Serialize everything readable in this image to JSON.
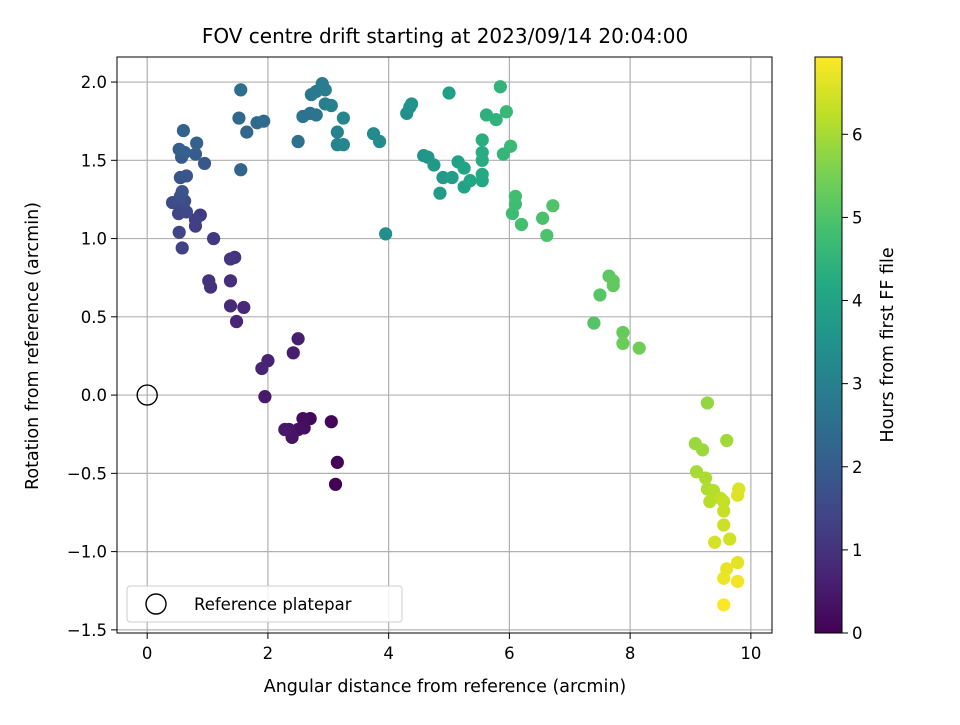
{
  "chart_data": {
    "type": "scatter",
    "title": "FOV centre drift starting at 2023/09/14 20:04:00",
    "xlabel": "Angular distance from reference (arcmin)",
    "ylabel": "Rotation from reference (arcmin)",
    "xlim": [
      -0.5,
      10.35
    ],
    "ylim": [
      -1.52,
      2.16
    ],
    "xticks": [
      0,
      2,
      4,
      6,
      8,
      10
    ],
    "yticks": [
      -1.5,
      -1.0,
      -0.5,
      0.0,
      0.5,
      1.0,
      1.5,
      2.0
    ],
    "xtick_labels": [
      "0",
      "2",
      "4",
      "6",
      "8",
      "10"
    ],
    "ytick_labels": [
      "−1.5",
      "−1.0",
      "−0.5",
      "0.0",
      "0.5",
      "1.0",
      "1.5",
      "2.0"
    ],
    "grid": true,
    "colormap": "viridis",
    "colorbar": {
      "label": "Hours from first FF file",
      "range": [
        0,
        6.93
      ],
      "ticks": [
        0,
        1,
        2,
        3,
        4,
        5,
        6
      ],
      "tick_labels": [
        "0",
        "1",
        "2",
        "3",
        "4",
        "5",
        "6"
      ]
    },
    "legend": {
      "location": "lower-left",
      "entries": [
        "Reference platepar"
      ]
    },
    "reference_point": {
      "x": 0.0,
      "y": 0.0
    },
    "series": [
      {
        "points": [
          {
            "x": 3.12,
            "y": -0.57,
            "c": 0.0
          },
          {
            "x": 3.15,
            "y": -0.43,
            "c": 0.05
          },
          {
            "x": 3.05,
            "y": -0.17,
            "c": 0.1
          },
          {
            "x": 2.7,
            "y": -0.15,
            "c": 0.15
          },
          {
            "x": 2.58,
            "y": -0.15,
            "c": 0.2
          },
          {
            "x": 2.6,
            "y": -0.21,
            "c": 0.25
          },
          {
            "x": 2.5,
            "y": -0.22,
            "c": 0.3
          },
          {
            "x": 2.4,
            "y": -0.27,
            "c": 0.35
          },
          {
            "x": 2.35,
            "y": -0.22,
            "c": 0.4
          },
          {
            "x": 2.28,
            "y": -0.22,
            "c": 0.45
          },
          {
            "x": 1.95,
            "y": -0.01,
            "c": 0.5
          },
          {
            "x": 2.42,
            "y": 0.27,
            "c": 0.55
          },
          {
            "x": 2.5,
            "y": 0.36,
            "c": 0.6
          },
          {
            "x": 2.0,
            "y": 0.22,
            "c": 0.65
          },
          {
            "x": 1.9,
            "y": 0.17,
            "c": 0.7
          },
          {
            "x": 1.48,
            "y": 0.47,
            "c": 0.75
          },
          {
            "x": 1.6,
            "y": 0.56,
            "c": 0.8
          },
          {
            "x": 1.38,
            "y": 0.57,
            "c": 0.85
          },
          {
            "x": 1.38,
            "y": 0.73,
            "c": 0.9
          },
          {
            "x": 1.05,
            "y": 0.69,
            "c": 0.95
          },
          {
            "x": 1.02,
            "y": 0.73,
            "c": 1.0
          },
          {
            "x": 1.45,
            "y": 0.88,
            "c": 1.05
          },
          {
            "x": 1.38,
            "y": 0.87,
            "c": 1.1
          },
          {
            "x": 1.1,
            "y": 1.0,
            "c": 1.15
          },
          {
            "x": 0.88,
            "y": 1.15,
            "c": 1.2
          },
          {
            "x": 0.8,
            "y": 1.08,
            "c": 1.25
          },
          {
            "x": 0.8,
            "y": 1.12,
            "c": 1.3
          },
          {
            "x": 0.58,
            "y": 0.94,
            "c": 1.35
          },
          {
            "x": 0.53,
            "y": 1.04,
            "c": 1.4
          },
          {
            "x": 0.52,
            "y": 1.16,
            "c": 1.45
          },
          {
            "x": 0.65,
            "y": 1.17,
            "c": 1.5
          },
          {
            "x": 0.6,
            "y": 1.2,
            "c": 1.55
          },
          {
            "x": 0.42,
            "y": 1.23,
            "c": 1.6
          },
          {
            "x": 0.62,
            "y": 1.24,
            "c": 1.65
          },
          {
            "x": 0.55,
            "y": 1.27,
            "c": 1.7
          },
          {
            "x": 0.58,
            "y": 1.3,
            "c": 1.75
          },
          {
            "x": 0.55,
            "y": 1.39,
            "c": 1.8
          },
          {
            "x": 0.65,
            "y": 1.4,
            "c": 1.85
          },
          {
            "x": 0.95,
            "y": 1.48,
            "c": 1.9
          },
          {
            "x": 0.57,
            "y": 1.52,
            "c": 1.95
          },
          {
            "x": 0.8,
            "y": 1.54,
            "c": 2.0
          },
          {
            "x": 0.53,
            "y": 1.57,
            "c": 2.05
          },
          {
            "x": 0.62,
            "y": 1.55,
            "c": 2.1
          },
          {
            "x": 0.82,
            "y": 1.61,
            "c": 2.15
          },
          {
            "x": 0.6,
            "y": 1.69,
            "c": 2.2
          },
          {
            "x": 1.55,
            "y": 1.44,
            "c": 2.25
          },
          {
            "x": 1.65,
            "y": 1.68,
            "c": 2.3
          },
          {
            "x": 1.52,
            "y": 1.77,
            "c": 2.35
          },
          {
            "x": 1.82,
            "y": 1.74,
            "c": 2.4
          },
          {
            "x": 1.93,
            "y": 1.75,
            "c": 2.45
          },
          {
            "x": 1.55,
            "y": 1.95,
            "c": 2.5
          },
          {
            "x": 2.5,
            "y": 1.62,
            "c": 2.55
          },
          {
            "x": 2.58,
            "y": 1.78,
            "c": 2.6
          },
          {
            "x": 2.7,
            "y": 1.8,
            "c": 2.65
          },
          {
            "x": 2.8,
            "y": 1.79,
            "c": 2.7
          },
          {
            "x": 2.72,
            "y": 1.92,
            "c": 2.75
          },
          {
            "x": 2.8,
            "y": 1.94,
            "c": 2.8
          },
          {
            "x": 2.9,
            "y": 1.99,
            "c": 2.85
          },
          {
            "x": 2.95,
            "y": 1.95,
            "c": 2.9
          },
          {
            "x": 2.95,
            "y": 1.86,
            "c": 2.95
          },
          {
            "x": 3.05,
            "y": 1.85,
            "c": 3.0
          },
          {
            "x": 3.15,
            "y": 1.68,
            "c": 3.05
          },
          {
            "x": 3.15,
            "y": 1.6,
            "c": 3.1
          },
          {
            "x": 3.25,
            "y": 1.77,
            "c": 3.15
          },
          {
            "x": 3.25,
            "y": 1.6,
            "c": 3.2
          },
          {
            "x": 3.75,
            "y": 1.67,
            "c": 3.3
          },
          {
            "x": 3.85,
            "y": 1.62,
            "c": 3.35
          },
          {
            "x": 3.95,
            "y": 1.03,
            "c": 3.4
          },
          {
            "x": 4.3,
            "y": 1.8,
            "c": 3.45
          },
          {
            "x": 4.35,
            "y": 1.84,
            "c": 3.5
          },
          {
            "x": 4.38,
            "y": 1.86,
            "c": 3.55
          },
          {
            "x": 4.58,
            "y": 1.53,
            "c": 3.6
          },
          {
            "x": 4.65,
            "y": 1.52,
            "c": 3.65
          },
          {
            "x": 4.75,
            "y": 1.47,
            "c": 3.7
          },
          {
            "x": 4.9,
            "y": 1.39,
            "c": 3.75
          },
          {
            "x": 4.85,
            "y": 1.29,
            "c": 3.8
          },
          {
            "x": 5.05,
            "y": 1.39,
            "c": 3.85
          },
          {
            "x": 5.0,
            "y": 1.93,
            "c": 3.9
          },
          {
            "x": 5.15,
            "y": 1.49,
            "c": 3.95
          },
          {
            "x": 5.25,
            "y": 1.33,
            "c": 4.0
          },
          {
            "x": 5.25,
            "y": 1.45,
            "c": 4.05
          },
          {
            "x": 5.35,
            "y": 1.37,
            "c": 4.1
          },
          {
            "x": 5.55,
            "y": 1.37,
            "c": 4.15
          },
          {
            "x": 5.55,
            "y": 1.41,
            "c": 4.2
          },
          {
            "x": 5.55,
            "y": 1.5,
            "c": 4.25
          },
          {
            "x": 5.55,
            "y": 1.55,
            "c": 4.3
          },
          {
            "x": 5.55,
            "y": 1.63,
            "c": 4.35
          },
          {
            "x": 5.62,
            "y": 1.79,
            "c": 4.4
          },
          {
            "x": 5.78,
            "y": 1.76,
            "c": 4.45
          },
          {
            "x": 5.85,
            "y": 1.97,
            "c": 4.5
          },
          {
            "x": 5.9,
            "y": 1.54,
            "c": 4.55
          },
          {
            "x": 5.95,
            "y": 1.81,
            "c": 4.6
          },
          {
            "x": 6.02,
            "y": 1.59,
            "c": 4.65
          },
          {
            "x": 6.05,
            "y": 1.16,
            "c": 4.7
          },
          {
            "x": 6.1,
            "y": 1.22,
            "c": 4.75
          },
          {
            "x": 6.1,
            "y": 1.27,
            "c": 4.8
          },
          {
            "x": 6.2,
            "y": 1.09,
            "c": 4.85
          },
          {
            "x": 6.55,
            "y": 1.13,
            "c": 4.9
          },
          {
            "x": 6.62,
            "y": 1.02,
            "c": 4.95
          },
          {
            "x": 6.72,
            "y": 1.21,
            "c": 5.0
          },
          {
            "x": 7.4,
            "y": 0.46,
            "c": 5.05
          },
          {
            "x": 7.5,
            "y": 0.64,
            "c": 5.1
          },
          {
            "x": 7.65,
            "y": 0.76,
            "c": 5.15
          },
          {
            "x": 7.72,
            "y": 0.73,
            "c": 5.2
          },
          {
            "x": 7.72,
            "y": 0.7,
            "c": 5.25
          },
          {
            "x": 7.88,
            "y": 0.4,
            "c": 5.3
          },
          {
            "x": 7.88,
            "y": 0.33,
            "c": 5.35
          },
          {
            "x": 8.15,
            "y": 0.3,
            "c": 5.4
          },
          {
            "x": 9.28,
            "y": -0.05,
            "c": 5.8
          },
          {
            "x": 9.08,
            "y": -0.31,
            "c": 5.85
          },
          {
            "x": 9.2,
            "y": -0.35,
            "c": 5.9
          },
          {
            "x": 9.6,
            "y": -0.29,
            "c": 5.95
          },
          {
            "x": 9.1,
            "y": -0.49,
            "c": 6.0
          },
          {
            "x": 9.25,
            "y": -0.53,
            "c": 6.05
          },
          {
            "x": 9.28,
            "y": -0.6,
            "c": 6.1
          },
          {
            "x": 9.38,
            "y": -0.61,
            "c": 6.15
          },
          {
            "x": 9.32,
            "y": -0.68,
            "c": 6.2
          },
          {
            "x": 9.5,
            "y": -0.66,
            "c": 6.25
          },
          {
            "x": 9.55,
            "y": -0.68,
            "c": 6.3
          },
          {
            "x": 9.55,
            "y": -0.74,
            "c": 6.35
          },
          {
            "x": 9.55,
            "y": -0.83,
            "c": 6.4
          },
          {
            "x": 9.65,
            "y": -0.92,
            "c": 6.45
          },
          {
            "x": 9.4,
            "y": -0.94,
            "c": 6.5
          },
          {
            "x": 9.8,
            "y": -0.6,
            "c": 6.55
          },
          {
            "x": 9.78,
            "y": -0.64,
            "c": 6.6
          },
          {
            "x": 9.78,
            "y": -1.07,
            "c": 6.65
          },
          {
            "x": 9.6,
            "y": -1.11,
            "c": 6.7
          },
          {
            "x": 9.55,
            "y": -1.17,
            "c": 6.75
          },
          {
            "x": 9.78,
            "y": -1.19,
            "c": 6.8
          },
          {
            "x": 9.55,
            "y": -1.34,
            "c": 6.93
          }
        ]
      }
    ]
  }
}
